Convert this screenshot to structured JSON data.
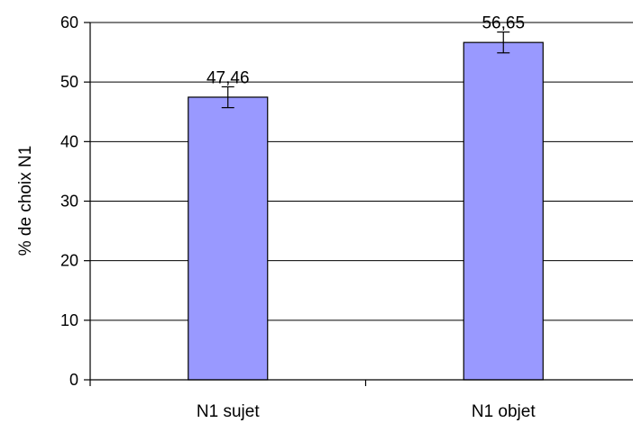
{
  "chart_data": {
    "type": "bar",
    "title": "",
    "xlabel": "",
    "ylabel": "% de choix N1",
    "categories": [
      "N1 sujet",
      "N1 objet"
    ],
    "values": [
      47.46,
      56.65
    ],
    "data_labels": [
      "47,46",
      "56,65"
    ],
    "error_bars": [
      {
        "low": 45.7,
        "high": 49.2
      },
      {
        "low": 54.9,
        "high": 58.4
      }
    ],
    "ylim": [
      0,
      60
    ],
    "yticks": [
      0,
      10,
      20,
      30,
      40,
      50,
      60
    ],
    "grid": true,
    "legend": "none",
    "colors": {
      "bar_fill": "#9999ff",
      "bar_stroke": "#000000",
      "grid": "#000000",
      "axis": "#000000"
    }
  }
}
